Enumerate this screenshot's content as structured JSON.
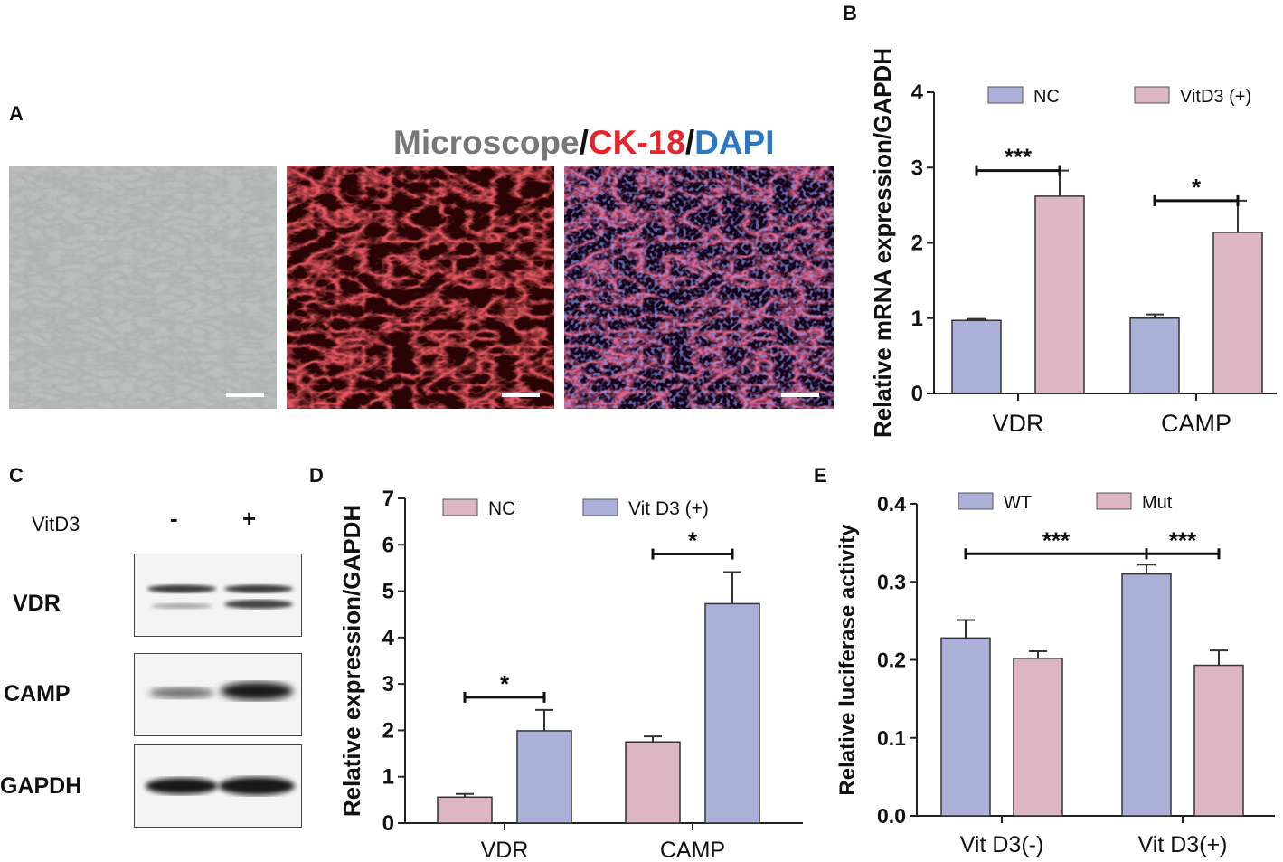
{
  "panel_letters": {
    "a": "A",
    "b": "B",
    "c": "C",
    "d": "D",
    "e": "E"
  },
  "panel_a": {
    "title_parts": [
      {
        "text": "Microscope",
        "color": "#777777"
      },
      {
        "text": "/",
        "color": "#111111"
      },
      {
        "text": "CK-18",
        "color": "#e8232a"
      },
      {
        "text": "/",
        "color": "#111111"
      },
      {
        "text": "DAPI",
        "color": "#2b78c2"
      }
    ],
    "images": [
      "brightfield-micrograph",
      "ck18-fluorescence-micrograph",
      "ck18-dapi-merge-micrograph"
    ]
  },
  "panel_c": {
    "treatment_label": "VitD3",
    "lanes": [
      "-",
      "+"
    ],
    "blots": [
      "VDR",
      "CAMP",
      "GAPDH"
    ]
  },
  "chart_data": [
    {
      "id": "B",
      "type": "bar",
      "categories": [
        "VDR",
        "CAMP"
      ],
      "series": [
        {
          "name": "NC",
          "values": [
            0.97,
            1.0
          ],
          "errors": [
            0.02,
            0.05
          ],
          "color": "#aab0d8"
        },
        {
          "name": "VitD3 (+)",
          "values": [
            2.62,
            2.14
          ],
          "errors": [
            0.34,
            0.42
          ],
          "color": "#ddb6c3"
        }
      ],
      "ylabel": "Relative mRNA expression/GAPDH",
      "ylim": [
        0,
        4
      ],
      "yticks": [
        "0",
        "1",
        "2",
        "3",
        "4"
      ],
      "significance": [
        "***",
        "*"
      ],
      "legend": "top",
      "grid": false
    },
    {
      "id": "D",
      "type": "bar",
      "categories": [
        "VDR",
        "CAMP"
      ],
      "series": [
        {
          "name": "NC",
          "values": [
            0.56,
            1.75
          ],
          "errors": [
            0.07,
            0.12
          ],
          "color": "#ddb6c3"
        },
        {
          "name": "Vit D3 (+)",
          "values": [
            1.99,
            4.73
          ],
          "errors": [
            0.45,
            0.68
          ],
          "color": "#aab0d8"
        }
      ],
      "ylabel": "Relative expression/GAPDH",
      "ylim": [
        0,
        7
      ],
      "yticks": [
        "0",
        "1",
        "2",
        "3",
        "4",
        "5",
        "6",
        "7"
      ],
      "significance": [
        "*",
        "*"
      ],
      "legend": "top",
      "grid": false
    },
    {
      "id": "E",
      "type": "bar",
      "categories": [
        "Vit D3(-)",
        "Vit D3(+)"
      ],
      "series": [
        {
          "name": "WT",
          "values": [
            0.228,
            0.31
          ],
          "errors": [
            0.023,
            0.012
          ],
          "color": "#aab0d8"
        },
        {
          "name": "Mut",
          "values": [
            0.202,
            0.193
          ],
          "errors": [
            0.009,
            0.019
          ],
          "color": "#ddb6c3"
        }
      ],
      "ylabel": "Relative luciferase activity",
      "ylim": [
        0,
        0.4
      ],
      "yticks": [
        "0.0",
        "0.1",
        "0.2",
        "0.3",
        "0.4"
      ],
      "significance": [
        "***",
        "***"
      ],
      "legend": "top",
      "grid": false
    }
  ]
}
